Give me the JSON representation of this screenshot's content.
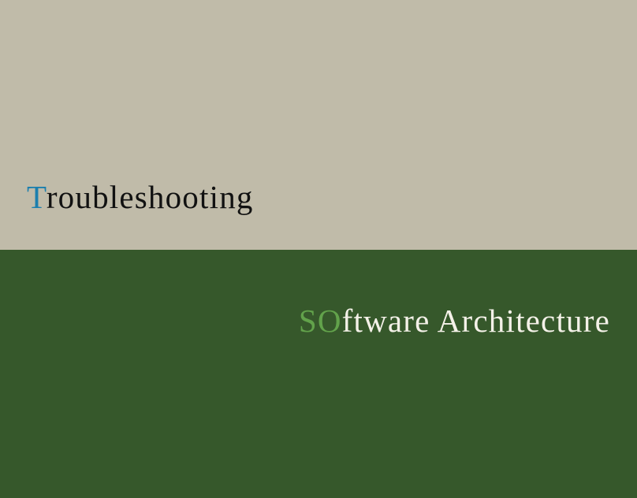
{
  "colors": {
    "top_background": "#c0bba9",
    "bottom_background": "#36582b",
    "top_text": "#111111",
    "top_accent": "#1c7fae",
    "bottom_text": "#f4f1e8",
    "bottom_accent": "#62a24b"
  },
  "top_panel": {
    "title_initial": "T",
    "title_rest": "roubleshooting"
  },
  "bottom_panel": {
    "title_initial": "SO",
    "title_rest": "ftware Architecture"
  }
}
